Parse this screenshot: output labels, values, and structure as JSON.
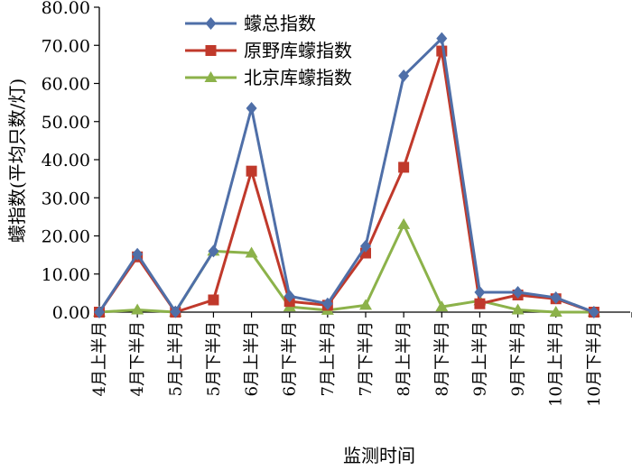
{
  "chart_data": {
    "type": "line",
    "xlabel": "监测时间",
    "ylabel": "蠓指数(平均只数/灯)",
    "ylim": [
      0,
      80
    ],
    "yticks": [
      "0.00",
      "10.00",
      "20.00",
      "30.00",
      "40.00",
      "50.00",
      "60.00",
      "70.00",
      "80.00"
    ],
    "categories": [
      "4月上半月",
      "4月下半月",
      "5月上半月",
      "5月下半月",
      "6月上半月",
      "6月下半月",
      "7月上半月",
      "7月下半月",
      "8月上半月",
      "8月下半月",
      "9月上半月",
      "9月下半月",
      "10月上半月",
      "10月下半月"
    ],
    "grid": false,
    "legend": "top-center",
    "series": [
      {
        "name": "蠓总指数",
        "color": "#4f6fa8",
        "marker": "diamond",
        "values": [
          0.0,
          15.2,
          0.1,
          16.0,
          53.5,
          4.2,
          2.2,
          17.3,
          62.0,
          71.8,
          5.2,
          5.2,
          3.8,
          0.0
        ]
      },
      {
        "name": "原野库蠓指数",
        "color": "#c0392b",
        "marker": "square",
        "values": [
          0.0,
          14.5,
          0.0,
          3.2,
          37.0,
          2.8,
          1.8,
          15.5,
          38.0,
          68.5,
          2.2,
          4.5,
          3.5,
          0.0
        ]
      },
      {
        "name": "北京库蠓指数",
        "color": "#8cb24a",
        "marker": "triangle",
        "values": [
          0.0,
          0.6,
          0.0,
          16.0,
          15.5,
          1.4,
          0.5,
          1.8,
          23.0,
          1.4,
          3.0,
          0.6,
          0.0,
          0.0
        ]
      }
    ]
  }
}
